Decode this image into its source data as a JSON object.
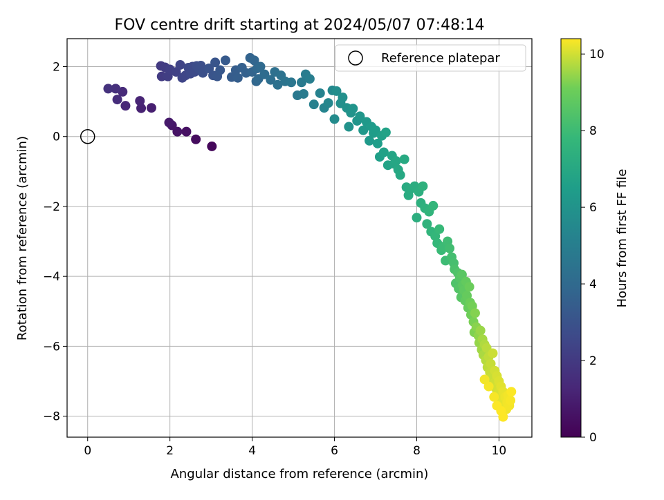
{
  "chart_data": {
    "type": "scatter",
    "title": "FOV centre drift starting at 2024/05/07 07:48:14",
    "xlabel": "Angular distance from reference (arcmin)",
    "ylabel": "Rotation from reference (arcmin)",
    "xlim": [
      -0.5,
      10.8
    ],
    "ylim": [
      -8.6,
      2.8
    ],
    "xticks": [
      0,
      2,
      4,
      6,
      8,
      10
    ],
    "yticks": [
      -8,
      -6,
      -4,
      -2,
      0,
      2
    ],
    "xtick_labels": [
      "0",
      "2",
      "4",
      "6",
      "8",
      "10"
    ],
    "ytick_labels": [
      "−8",
      "−6",
      "−4",
      "−2",
      "0",
      "2"
    ],
    "grid": true,
    "legend": {
      "location": "upper-right",
      "entries": [
        "Reference platepar"
      ]
    },
    "reference_point": {
      "x": 0,
      "y": 0
    },
    "colorbar": {
      "label": "Hours from first FF file",
      "colormap": "viridis",
      "range": [
        0,
        10.4
      ],
      "ticks": [
        0,
        2,
        4,
        6,
        8,
        10
      ],
      "tick_labels": [
        "0",
        "2",
        "4",
        "6",
        "8",
        "10"
      ]
    },
    "series": [
      {
        "x": [
          3.02,
          2.63,
          2.4,
          2.18,
          2.05,
          1.98,
          1.55,
          1.3,
          1.27,
          0.92,
          0.85,
          0.72,
          0.68,
          0.5
        ],
        "y": [
          -0.28,
          -0.08,
          0.14,
          0.14,
          0.32,
          0.4,
          0.82,
          0.81,
          1.02,
          0.88,
          1.28,
          1.06,
          1.37,
          1.37
        ],
        "c": [
          0.2,
          0.35,
          0.5,
          0.6,
          0.7,
          0.8,
          1.0,
          1.1,
          1.2,
          1.3,
          1.4,
          1.5,
          1.6,
          1.7
        ]
      },
      {
        "x": [
          1.78,
          1.8,
          1.88,
          1.95,
          2.0,
          2.15,
          2.25,
          2.3,
          2.38,
          2.45,
          2.5,
          2.55,
          2.6,
          2.65,
          2.7,
          2.75,
          2.8,
          2.95,
          3.05,
          3.1,
          3.15,
          3.22,
          3.35,
          3.5,
          3.6,
          3.65,
          3.75,
          3.85,
          3.95,
          4.0,
          4.05,
          4.1,
          4.12,
          4.15,
          4.2,
          4.3,
          4.45,
          4.55,
          4.62,
          4.7,
          4.8,
          4.95,
          5.1,
          5.2,
          5.25,
          5.3,
          5.4,
          5.5,
          5.65,
          5.75,
          5.85,
          5.95,
          6.0
        ],
        "y": [
          2.02,
          1.72,
          1.98,
          1.72,
          1.92,
          1.85,
          2.05,
          1.68,
          1.75,
          1.97,
          1.8,
          2.0,
          1.85,
          2.02,
          1.95,
          2.03,
          1.82,
          1.95,
          1.75,
          2.12,
          1.72,
          1.9,
          2.18,
          1.7,
          1.9,
          1.68,
          1.97,
          1.82,
          2.25,
          1.85,
          2.18,
          1.58,
          1.95,
          1.65,
          2.0,
          1.78,
          1.62,
          1.85,
          1.48,
          1.75,
          1.58,
          1.55,
          1.18,
          1.55,
          1.22,
          1.78,
          1.65,
          0.92,
          1.24,
          0.82,
          0.96,
          1.32,
          0.5
        ],
        "c": [
          2.0,
          2.05,
          2.1,
          2.15,
          2.2,
          2.3,
          2.4,
          2.45,
          2.5,
          2.55,
          2.6,
          2.65,
          2.7,
          2.75,
          2.8,
          2.85,
          2.9,
          3.0,
          3.05,
          3.1,
          3.15,
          3.2,
          3.3,
          3.4,
          3.45,
          3.5,
          3.55,
          3.6,
          3.7,
          3.75,
          3.8,
          3.85,
          3.9,
          3.95,
          4.0,
          4.1,
          4.2,
          4.3,
          4.35,
          4.4,
          4.5,
          4.6,
          4.7,
          4.8,
          4.85,
          4.9,
          5.0,
          5.1,
          5.2,
          5.3,
          5.4,
          5.5,
          5.6
        ]
      },
      {
        "x": [
          6.05,
          6.15,
          6.2,
          6.3,
          6.35,
          6.4,
          6.45,
          6.55,
          6.62,
          6.7,
          6.78,
          6.85,
          6.9,
          6.95,
          7.0,
          7.05,
          7.1,
          7.15,
          7.2,
          7.25,
          7.3,
          7.4,
          7.45,
          7.5,
          7.55,
          7.6,
          7.7,
          7.75,
          7.8,
          7.85,
          7.95,
          8.0,
          8.05,
          8.1,
          8.15,
          8.2,
          8.25,
          8.3,
          8.35,
          8.4,
          8.45,
          8.5,
          8.55,
          8.6,
          8.65,
          8.7,
          8.75,
          8.8,
          8.85,
          8.9
        ],
        "y": [
          1.3,
          0.95,
          1.12,
          0.82,
          0.28,
          0.68,
          0.8,
          0.45,
          0.58,
          0.18,
          0.42,
          -0.12,
          0.28,
          0.1,
          0.18,
          -0.2,
          -0.58,
          0.02,
          -0.45,
          0.12,
          -0.82,
          -0.55,
          -0.78,
          -0.7,
          -0.95,
          -1.1,
          -0.65,
          -1.45,
          -1.68,
          -1.5,
          -1.42,
          -2.32,
          -1.58,
          -1.9,
          -1.42,
          -2.05,
          -2.5,
          -2.15,
          -2.72,
          -1.98,
          -2.85,
          -3.05,
          -2.65,
          -3.25,
          -3.15,
          -3.55,
          -3.0,
          -3.2,
          -3.45,
          -3.62
        ],
        "c": [
          5.7,
          5.8,
          5.85,
          5.9,
          5.95,
          6.0,
          6.05,
          6.1,
          6.15,
          6.2,
          6.25,
          6.3,
          6.35,
          6.4,
          6.45,
          6.5,
          6.55,
          6.6,
          6.65,
          6.7,
          6.75,
          6.8,
          6.85,
          6.9,
          6.95,
          7.0,
          7.05,
          7.1,
          7.15,
          7.2,
          7.25,
          7.3,
          7.35,
          7.4,
          7.45,
          7.5,
          7.55,
          7.6,
          7.65,
          7.7,
          7.75,
          7.8,
          7.85,
          7.9,
          7.95,
          8.0,
          8.05,
          8.1,
          8.15,
          8.2
        ]
      },
      {
        "x": [
          8.92,
          8.95,
          9.0,
          9.02,
          9.05,
          9.08,
          9.1,
          9.12,
          9.15,
          9.18,
          9.2,
          9.22,
          9.25,
          9.28,
          9.3,
          9.32,
          9.35,
          9.38,
          9.4,
          9.42,
          9.45,
          9.5,
          9.52,
          9.55,
          9.58,
          9.6,
          9.62,
          9.65,
          9.68,
          9.7,
          9.72,
          9.75,
          9.78,
          9.8,
          9.82,
          9.85,
          9.88,
          9.9,
          9.92,
          9.95,
          9.98,
          10.0,
          10.02,
          10.05,
          10.08,
          10.1,
          10.12,
          10.15,
          10.18,
          10.2,
          10.22,
          10.25,
          10.28,
          10.3,
          10.1,
          10.05,
          9.95,
          9.88,
          9.75,
          9.65
        ],
        "y": [
          -3.8,
          -4.2,
          -3.9,
          -4.35,
          -4.05,
          -4.6,
          -3.95,
          -4.25,
          -4.4,
          -4.7,
          -4.15,
          -4.55,
          -4.9,
          -4.3,
          -4.75,
          -5.1,
          -4.85,
          -5.3,
          -5.6,
          -5.05,
          -5.45,
          -5.7,
          -5.9,
          -5.55,
          -6.1,
          -5.8,
          -6.25,
          -5.95,
          -6.4,
          -6.05,
          -6.6,
          -6.3,
          -6.75,
          -6.5,
          -6.9,
          -6.2,
          -7.05,
          -6.7,
          -7.2,
          -6.85,
          -7.35,
          -7.0,
          -7.5,
          -7.15,
          -7.6,
          -7.3,
          -7.75,
          -7.45,
          -7.8,
          -7.6,
          -7.4,
          -7.7,
          -7.55,
          -7.3,
          -8.02,
          -7.85,
          -7.7,
          -7.45,
          -7.15,
          -6.95
        ],
        "c": [
          8.3,
          8.4,
          8.45,
          8.5,
          8.55,
          8.6,
          8.65,
          8.7,
          8.75,
          8.8,
          8.85,
          8.9,
          8.95,
          9.0,
          9.05,
          9.1,
          9.15,
          9.2,
          9.25,
          9.3,
          9.35,
          9.4,
          9.45,
          9.5,
          9.55,
          9.6,
          9.65,
          9.7,
          9.75,
          9.8,
          9.82,
          9.85,
          9.88,
          9.9,
          9.92,
          9.95,
          9.97,
          10.0,
          10.02,
          10.05,
          10.07,
          10.1,
          10.12,
          10.15,
          10.17,
          10.2,
          10.22,
          10.25,
          10.27,
          10.3,
          10.3,
          10.32,
          10.35,
          10.38,
          10.4,
          10.4,
          10.38,
          10.35,
          10.33,
          10.3
        ]
      }
    ]
  }
}
